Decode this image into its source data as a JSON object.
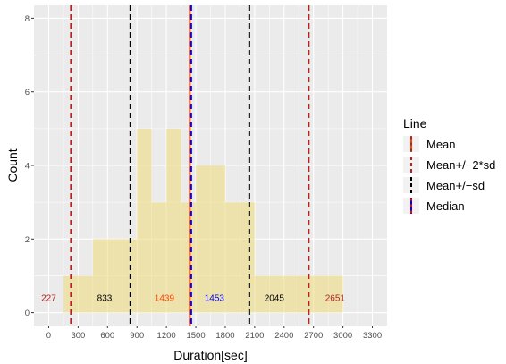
{
  "chart_data": {
    "type": "bar",
    "xlabel": "Duration[sec]",
    "ylabel": "Count",
    "xlim": [
      -150,
      3450
    ],
    "ylim": [
      -0.35,
      8.35
    ],
    "x_ticks": [
      0,
      300,
      600,
      900,
      1200,
      1500,
      1800,
      2100,
      2400,
      2700,
      3000,
      3300
    ],
    "y_ticks": [
      0,
      2,
      4,
      6,
      8
    ],
    "grid": true,
    "histogram": {
      "bin_width": 150,
      "fill": "#EEDC82",
      "bins": [
        {
          "start": 150,
          "end": 300,
          "count": 1
        },
        {
          "start": 300,
          "end": 450,
          "count": 1
        },
        {
          "start": 450,
          "end": 600,
          "count": 2
        },
        {
          "start": 600,
          "end": 750,
          "count": 2
        },
        {
          "start": 750,
          "end": 900,
          "count": 2
        },
        {
          "start": 900,
          "end": 1050,
          "count": 5
        },
        {
          "start": 1050,
          "end": 1200,
          "count": 3
        },
        {
          "start": 1200,
          "end": 1350,
          "count": 5
        },
        {
          "start": 1350,
          "end": 1500,
          "count": 3
        },
        {
          "start": 1500,
          "end": 1650,
          "count": 4
        },
        {
          "start": 1650,
          "end": 1800,
          "count": 4
        },
        {
          "start": 1800,
          "end": 1950,
          "count": 3
        },
        {
          "start": 1950,
          "end": 2100,
          "count": 3
        },
        {
          "start": 2100,
          "end": 2250,
          "count": 1
        },
        {
          "start": 2250,
          "end": 2400,
          "count": 1
        },
        {
          "start": 2400,
          "end": 2550,
          "count": 1
        },
        {
          "start": 2550,
          "end": 2700,
          "count": 1
        },
        {
          "start": 2700,
          "end": 2850,
          "count": 1
        },
        {
          "start": 2850,
          "end": 3000,
          "count": 1
        }
      ]
    },
    "vlines": [
      {
        "x": 227,
        "label": "227",
        "kind": "Mean+/−2*sd",
        "color1": "#b22222",
        "color2": "#b22222",
        "label_color": "#b22222",
        "label_x": 0,
        "label_y": 0.4
      },
      {
        "x": 833,
        "label": "833",
        "kind": "Mean+/−sd",
        "color1": "#000000",
        "color2": "#000000",
        "label_color": "#000000",
        "label_x": 570,
        "label_y": 0.4
      },
      {
        "x": 1439,
        "label": "1439",
        "kind": "Mean",
        "color1": "#b22222",
        "color2": "#ff4500",
        "label_color": "#ff4500",
        "label_x": 1180,
        "label_y": 0.4
      },
      {
        "x": 1453,
        "label": "1453",
        "kind": "Median",
        "color1": "#0000ff",
        "color2": "#0000ff",
        "label_color": "#0000ff",
        "label_x": 1690,
        "label_y": 0.4
      },
      {
        "x": 2045,
        "label": "2045",
        "kind": "Mean+/−sd",
        "color1": "#000000",
        "color2": "#000000",
        "label_color": "#000000",
        "label_x": 2300,
        "label_y": 0.4
      },
      {
        "x": 2651,
        "label": "2651",
        "kind": "Mean+/−2*sd",
        "color1": "#b22222",
        "color2": "#b22222",
        "label_color": "#b22222",
        "label_x": 2920,
        "label_y": 0.4
      }
    ],
    "legend": {
      "title": "Line",
      "placement": "right",
      "entries": [
        {
          "label": "Mean",
          "color1": "#b22222",
          "color2": "#ff4500"
        },
        {
          "label": "Mean+/−2*sd",
          "color1": "#b22222",
          "color2": "#b22222"
        },
        {
          "label": "Mean+/−sd",
          "color1": "#000000",
          "color2": "#000000"
        },
        {
          "label": "Median",
          "color1": "#ff0000",
          "color2": "#0000ff"
        }
      ]
    }
  }
}
